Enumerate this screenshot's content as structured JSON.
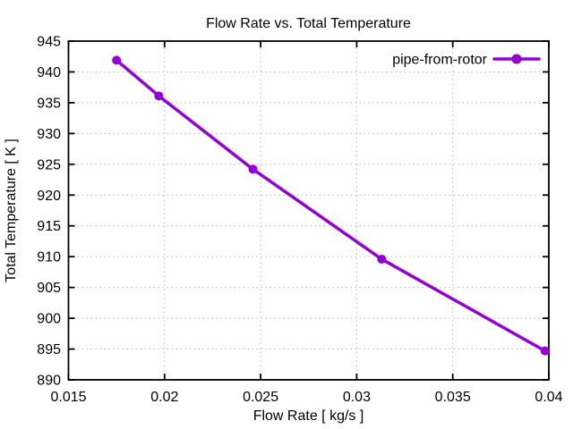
{
  "chart_data": {
    "type": "line",
    "title": "Flow Rate vs. Total Temperature",
    "xlabel": "Flow Rate [ kg/s ]",
    "ylabel": "Total Temperature [ K ]",
    "xlim": [
      0.015,
      0.04
    ],
    "ylim": [
      890,
      945
    ],
    "xticks": [
      0.015,
      0.02,
      0.025,
      0.03,
      0.035,
      0.04
    ],
    "yticks": [
      890,
      895,
      900,
      905,
      910,
      915,
      920,
      925,
      930,
      935,
      940,
      945
    ],
    "grid": true,
    "legend_position": "top-right-inside",
    "series": [
      {
        "name": "pipe-from-rotor",
        "color": "#9400d3",
        "marker": "filled-circle",
        "style": "linespoints",
        "x": [
          0.0175,
          0.0197,
          0.0246,
          0.0313,
          0.0398
        ],
        "y": [
          941.9,
          936.1,
          924.2,
          909.6,
          894.7
        ]
      }
    ]
  }
}
